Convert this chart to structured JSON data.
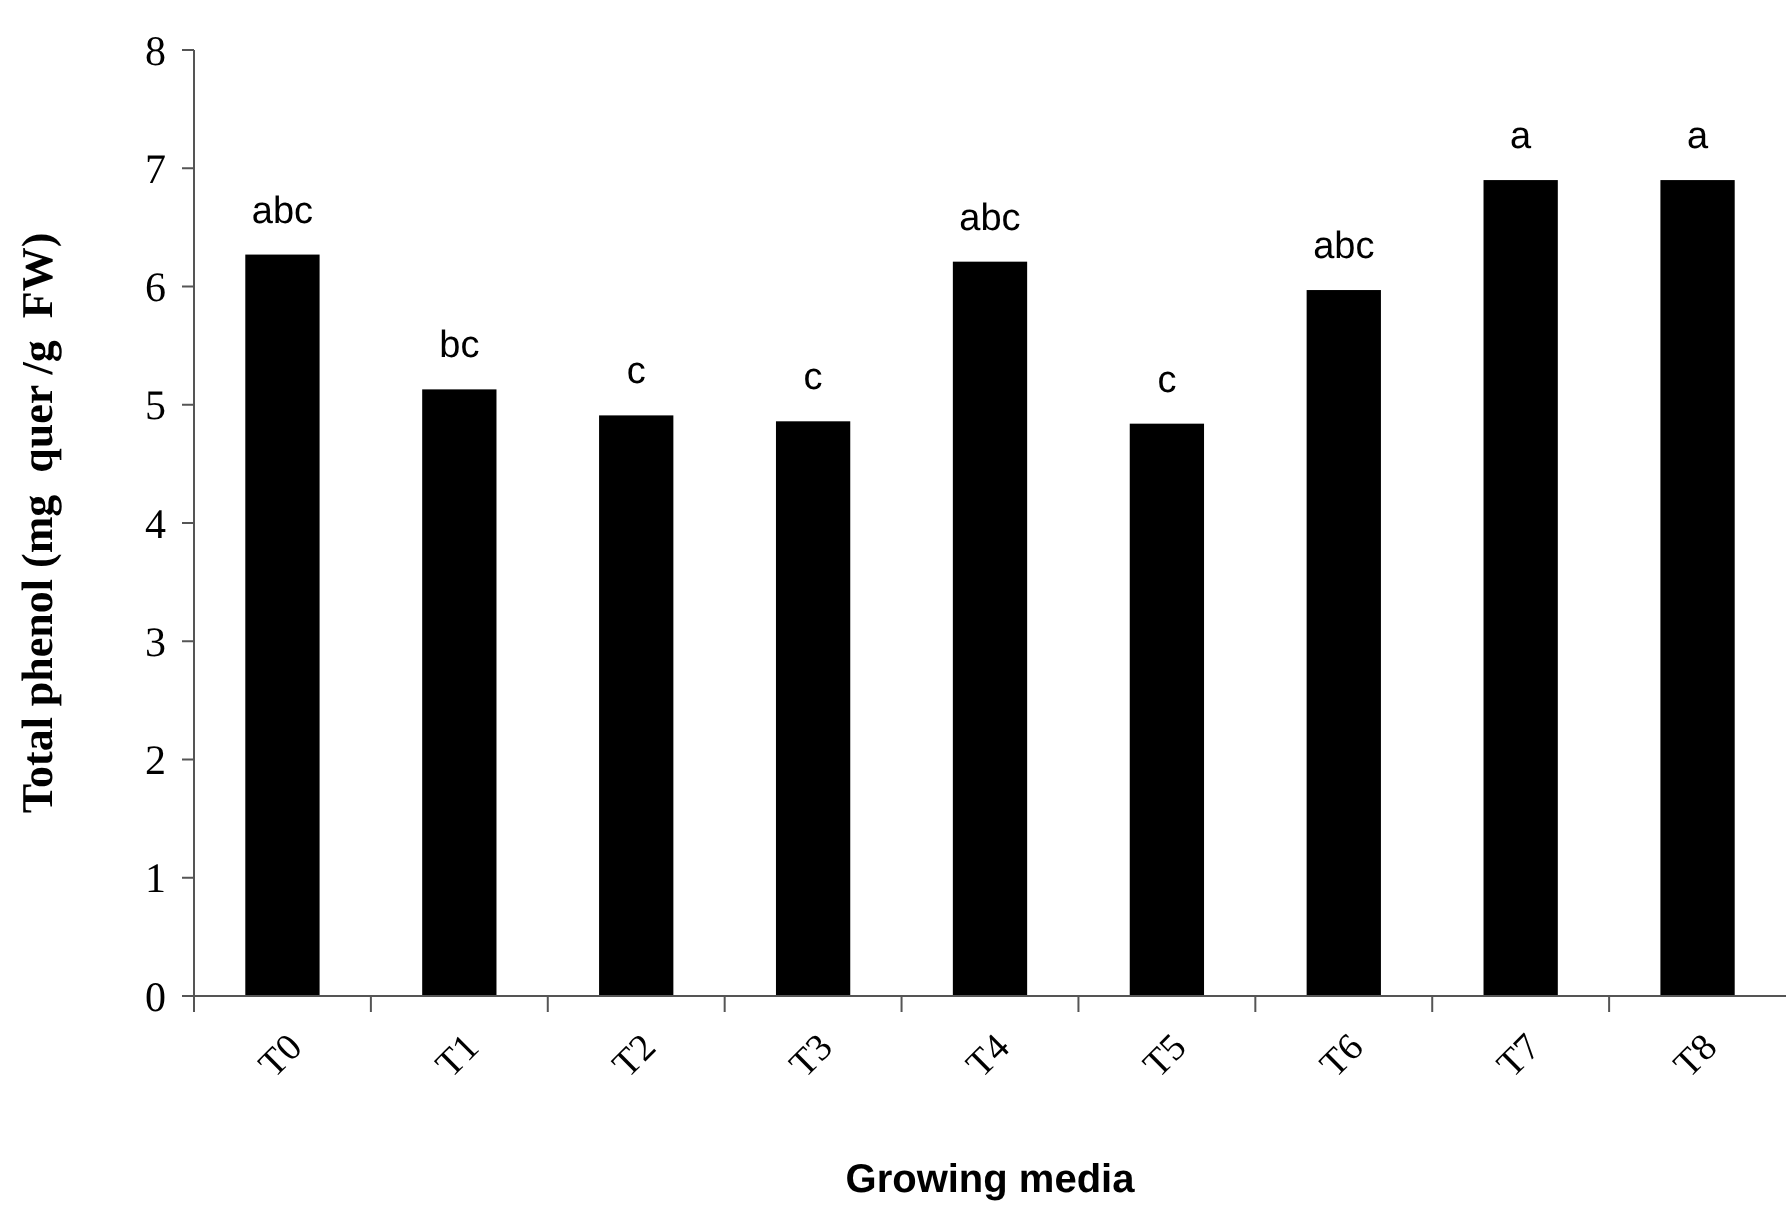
{
  "chart_data": {
    "type": "bar",
    "xlabel": "Growing media",
    "ylabel": "Total phenol (mg  quer /g  FW)",
    "categories": [
      "T0",
      "T1",
      "T2",
      "T3",
      "T4",
      "T5",
      "T6",
      "T7",
      "T8"
    ],
    "values": [
      6.27,
      5.13,
      4.91,
      4.86,
      6.21,
      4.84,
      5.97,
      6.9,
      6.9
    ],
    "color": "#000000",
    "ylim": [
      0,
      8
    ],
    "yticks": [
      0,
      1,
      2,
      3,
      4,
      5,
      6,
      7,
      8
    ],
    "grid": false,
    "annotations": [
      {
        "text": "abc",
        "x": "T0",
        "y": 6.27
      },
      {
        "text": "bc",
        "x": "T1",
        "y": 5.13
      },
      {
        "text": "c",
        "x": "T2",
        "y": 4.91
      },
      {
        "text": "c",
        "x": "T3",
        "y": 4.86
      },
      {
        "text": "abc",
        "x": "T4",
        "y": 6.21
      },
      {
        "text": "c",
        "x": "T5",
        "y": 4.84
      },
      {
        "text": "abc",
        "x": "T6",
        "y": 5.97
      },
      {
        "text": "a",
        "x": "T7",
        "y": 6.9
      },
      {
        "text": "a",
        "x": "T8",
        "y": 6.9
      }
    ]
  }
}
